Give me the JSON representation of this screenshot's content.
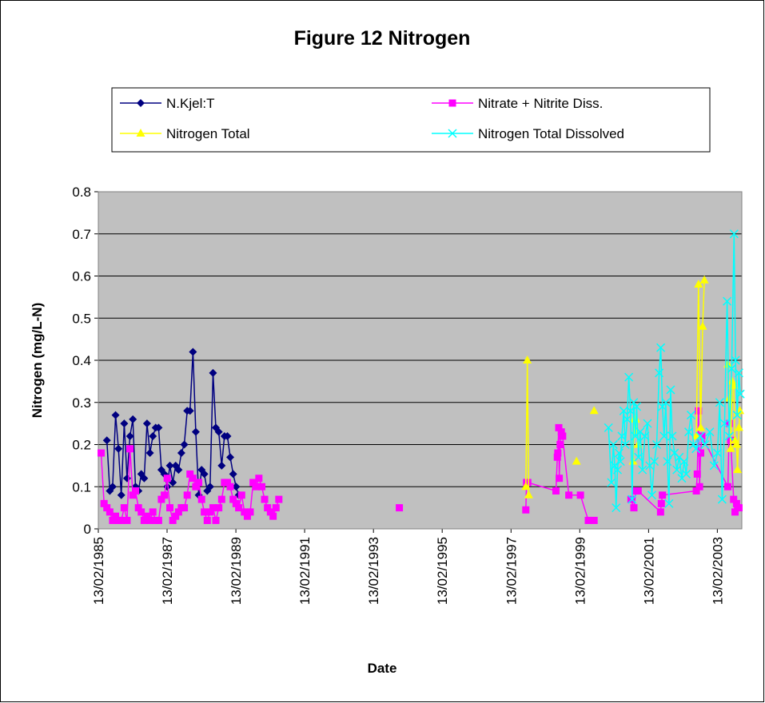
{
  "chart_data": {
    "type": "line",
    "title": "Figure 12 Nitrogen",
    "x_label": "Date",
    "y_label": "Nitrogen (mg/L-N)",
    "xlim": [
      "1985-02-13",
      "2003-10-31"
    ],
    "xticks": [
      {
        "value": "1985-02-13",
        "label": "13/02/1985"
      },
      {
        "value": "1987-02-13",
        "label": "13/02/1987"
      },
      {
        "value": "1989-02-13",
        "label": "13/02/1989"
      },
      {
        "value": "1991-02-13",
        "label": "13/02/1991"
      },
      {
        "value": "1993-02-13",
        "label": "13/02/1993"
      },
      {
        "value": "1995-02-13",
        "label": "13/02/1995"
      },
      {
        "value": "1997-02-13",
        "label": "13/02/1997"
      },
      {
        "value": "1999-02-13",
        "label": "13/02/1999"
      },
      {
        "value": "2001-02-13",
        "label": "13/02/2001"
      },
      {
        "value": "2003-02-13",
        "label": "13/02/2003"
      }
    ],
    "ylim": [
      0,
      0.8
    ],
    "yticks": [
      0,
      0.1,
      0.2,
      0.3,
      0.4,
      0.5,
      0.6,
      0.7,
      0.8
    ],
    "grid": true,
    "legend": "top",
    "background": "#c0c0c0",
    "series": [
      {
        "name": "N.Kjel:T",
        "color": "#000080",
        "marker": "diamond",
        "x": [
          "1985-05-15",
          "1985-06-15",
          "1985-07-15",
          "1985-08-15",
          "1985-09-15",
          "1985-10-15",
          "1985-11-15",
          "1985-12-15",
          "1986-01-15",
          "1986-02-15",
          "1986-03-15",
          "1986-04-15",
          "1986-05-15",
          "1986-06-15",
          "1986-07-15",
          "1986-08-15",
          "1986-09-15",
          "1986-10-15",
          "1986-11-15",
          "1986-12-15",
          "1987-01-15",
          "1987-02-15",
          "1987-03-15",
          "1987-04-15",
          "1987-05-15",
          "1987-06-15",
          "1987-07-15",
          "1987-08-15",
          "1987-09-15",
          "1987-10-15",
          "1987-11-15",
          "1987-12-15",
          "1988-01-15",
          "1988-02-15",
          "1988-03-15",
          "1988-04-15",
          "1988-05-15",
          "1988-06-15",
          "1988-07-15",
          "1988-08-15",
          "1988-09-15",
          "1988-10-15",
          "1988-11-15",
          "1988-12-15",
          "1989-01-15",
          "1989-02-15",
          "1989-03-15"
        ],
        "values": [
          0.21,
          0.09,
          0.1,
          0.27,
          0.19,
          0.08,
          0.25,
          0.12,
          0.22,
          0.26,
          0.1,
          0.09,
          0.13,
          0.12,
          0.25,
          0.18,
          0.22,
          0.24,
          0.24,
          0.14,
          0.13,
          0.1,
          0.15,
          0.11,
          0.15,
          0.14,
          0.18,
          0.2,
          0.28,
          0.28,
          0.42,
          0.23,
          0.08,
          0.14,
          0.13,
          0.09,
          0.1,
          0.37,
          0.24,
          0.23,
          0.15,
          0.22,
          0.22,
          0.17,
          0.13,
          0.1,
          0.08
        ]
      },
      {
        "name": "Nitrate + Nitrite Diss.",
        "color": "#ff00ff",
        "marker": "square",
        "x": [
          "1985-03-15",
          "1985-04-15",
          "1985-05-15",
          "1985-06-15",
          "1985-07-15",
          "1985-08-15",
          "1985-09-15",
          "1985-10-15",
          "1985-11-15",
          "1985-12-15",
          "1986-01-15",
          "1986-02-15",
          "1986-03-15",
          "1986-04-15",
          "1986-05-15",
          "1986-06-15",
          "1986-07-15",
          "1986-08-15",
          "1986-09-15",
          "1986-10-15",
          "1986-11-15",
          "1986-12-15",
          "1987-01-15",
          "1987-02-15",
          "1987-03-15",
          "1987-04-15",
          "1987-05-15",
          "1987-06-15",
          "1987-07-15",
          "1987-08-15",
          "1987-09-15",
          "1987-10-15",
          "1987-11-15",
          "1987-12-15",
          "1988-01-15",
          "1988-02-15",
          "1988-03-15",
          "1988-04-15",
          "1988-05-15",
          "1988-06-15",
          "1988-07-15",
          "1988-08-15",
          "1988-09-15",
          "1988-10-15",
          "1988-11-15",
          "1988-12-15",
          "1989-01-15",
          "1989-02-15",
          "1989-03-15",
          "1989-04-15",
          "1989-05-15",
          "1989-06-15",
          "1989-07-15",
          "1989-08-15",
          "1989-09-15",
          "1989-10-15",
          "1989-11-15",
          "1989-12-15",
          "1990-01-15",
          "1990-02-15",
          "1990-03-15",
          "1990-04-15",
          "1990-05-15",
          null,
          "1993-11-15",
          null,
          "1997-07-20",
          "1997-07-28",
          "1997-08-10",
          "1998-06-05",
          "1998-06-20",
          "1998-06-25",
          "1998-07-05",
          "1998-07-10",
          "1998-07-20",
          "1998-08-01",
          "1998-08-15",
          "1998-10-20",
          "1999-02-20",
          "1999-05-15",
          "1999-07-15",
          null,
          "2000-08-10",
          "2000-09-10",
          "2000-10-01",
          "2000-10-25",
          "2001-06-20",
          "2001-06-28",
          "2001-07-10",
          "2002-07-05",
          "2002-07-15",
          "2002-07-28",
          "2002-08-08",
          "2002-08-20",
          "2002-09-01",
          "2003-06-05",
          "2003-06-20",
          "2003-07-05",
          "2003-08-05",
          "2003-08-20",
          "2003-09-05",
          "2003-10-01"
        ],
        "values": [
          0.18,
          0.06,
          0.05,
          0.04,
          0.02,
          0.03,
          0.02,
          0.02,
          0.05,
          0.02,
          0.19,
          0.08,
          0.09,
          0.05,
          0.04,
          0.02,
          0.03,
          0.02,
          0.04,
          0.02,
          0.02,
          0.07,
          0.08,
          0.12,
          0.05,
          0.02,
          0.03,
          0.04,
          0.05,
          0.05,
          0.08,
          0.13,
          0.12,
          0.1,
          0.11,
          0.07,
          0.04,
          0.02,
          0.04,
          0.05,
          0.02,
          0.05,
          0.07,
          0.11,
          0.11,
          0.1,
          0.07,
          0.06,
          0.05,
          0.08,
          0.04,
          0.03,
          0.04,
          0.11,
          0.1,
          0.12,
          0.1,
          0.07,
          0.05,
          0.04,
          0.03,
          0.05,
          0.07,
          null,
          0.05,
          null,
          0.045,
          0.11,
          0.11,
          0.09,
          0.17,
          0.18,
          0.24,
          0.12,
          0.2,
          0.23,
          0.22,
          0.08,
          0.08,
          0.02,
          0.02,
          null,
          0.07,
          0.05,
          0.09,
          0.09,
          0.04,
          0.06,
          0.08,
          0.09,
          0.13,
          0.28,
          0.1,
          0.18,
          0.22,
          0.1,
          0.25,
          0.21,
          0.07,
          0.04,
          0.06,
          0.05
        ]
      },
      {
        "name": "Nitrogen Total",
        "color": "#ffff00",
        "marker": "triangle",
        "x": [
          "1997-07-20",
          "1997-08-05",
          "1997-08-20",
          null,
          "1999-01-10",
          null,
          "1999-07-15",
          null,
          "2000-09-01",
          "2000-09-15",
          "2000-10-01",
          "2000-10-25",
          null,
          "2002-07-05",
          "2002-07-28",
          "2002-08-20",
          "2002-09-10",
          "2002-09-28",
          null,
          "2003-06-05",
          "2003-06-20",
          "2003-07-05",
          "2003-07-20",
          "2003-08-05",
          "2003-08-20",
          "2003-09-05",
          "2003-09-15",
          "2003-10-01",
          "2003-10-10"
        ],
        "values": [
          0.1,
          0.4,
          0.08,
          null,
          0.16,
          null,
          0.28,
          null,
          0.16,
          0.26,
          0.26,
          0.2,
          null,
          0.22,
          0.58,
          0.24,
          0.48,
          0.59,
          null,
          0.39,
          0.31,
          0.19,
          0.35,
          0.34,
          0.21,
          0.2,
          0.14,
          0.24,
          0.28
        ]
      },
      {
        "name": "Nitrogen Total Dissolved",
        "color": "#00ffff",
        "marker": "x",
        "x": [
          "1999-12-15",
          "2000-01-15",
          "2000-02-05",
          "2000-02-20",
          "2000-03-05",
          "2000-03-20",
          "2000-04-05",
          "2000-04-20",
          "2000-05-05",
          "2000-05-25",
          "2000-06-10",
          "2000-07-01",
          "2000-07-18",
          "2000-08-05",
          "2000-08-22",
          "2000-09-08",
          "2000-09-25",
          "2000-10-10",
          "2000-10-28",
          "2000-11-15",
          "2000-12-10",
          "2001-01-05",
          "2001-02-01",
          "2001-02-25",
          "2001-03-20",
          "2001-04-15",
          "2001-05-10",
          "2001-06-05",
          "2001-06-22",
          "2001-07-10",
          "2001-07-28",
          "2001-08-15",
          "2001-09-01",
          "2001-09-18",
          "2001-10-05",
          "2001-10-22",
          "2001-11-15",
          "2001-12-10",
          "2002-01-05",
          "2002-02-01",
          "2002-02-25",
          "2002-03-20",
          "2002-04-15",
          "2002-05-10",
          "2002-06-05",
          "2002-07-01",
          "2002-08-15",
          "2002-10-05",
          "2002-11-25",
          "2003-01-10",
          "2003-02-15",
          "2003-03-10",
          "2003-04-05",
          "2003-05-01",
          "2003-05-28",
          "2003-06-20",
          "2003-07-15",
          "2003-08-10",
          "2003-08-25",
          "2003-09-12",
          "2003-09-30",
          "2003-10-15"
        ],
        "values": [
          0.24,
          0.11,
          0.2,
          0.15,
          0.05,
          0.14,
          0.18,
          0.16,
          0.22,
          0.28,
          0.2,
          0.26,
          0.36,
          0.28,
          0.07,
          0.3,
          0.22,
          0.29,
          0.17,
          0.23,
          0.14,
          0.22,
          0.25,
          0.15,
          0.08,
          0.16,
          0.2,
          0.37,
          0.43,
          0.29,
          0.22,
          0.3,
          0.16,
          0.06,
          0.33,
          0.22,
          0.18,
          0.14,
          0.17,
          0.12,
          0.16,
          0.13,
          0.23,
          0.27,
          0.2,
          0.19,
          0.22,
          0.2,
          0.23,
          0.15,
          0.18,
          0.3,
          0.07,
          0.25,
          0.54,
          0.22,
          0.38,
          0.7,
          0.4,
          0.27,
          0.37,
          0.32
        ]
      }
    ]
  }
}
